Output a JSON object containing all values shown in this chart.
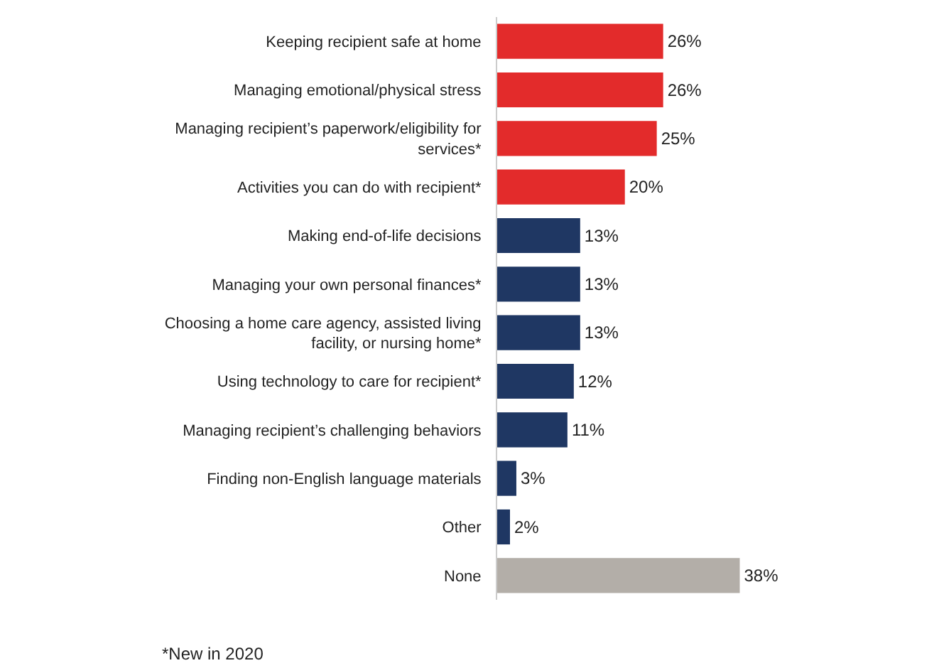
{
  "chart_data": {
    "type": "bar",
    "orientation": "horizontal",
    "data_labels": true,
    "categories": [
      "Keeping recipient safe at home",
      "Managing emotional/physical stress",
      "Managing recipient’s paperwork/eligibility for services*",
      "Activities you can do with recipient*",
      "Making end-of-life decisions",
      "Managing your own personal finances*",
      "Choosing a home care agency, assisted living facility, or nursing home*",
      "Using technology to care for recipient*",
      "Managing recipient’s challenging behaviors",
      "Finding non-English language materials",
      "Other",
      "None"
    ],
    "values": [
      26,
      26,
      25,
      20,
      13,
      13,
      13,
      12,
      11,
      3,
      2,
      38
    ],
    "value_labels": [
      "26%",
      "26%",
      "25%",
      "20%",
      "13%",
      "13%",
      "13%",
      "12%",
      "11%",
      "3%",
      "2%",
      "38%"
    ],
    "colors": [
      "#e32b2b",
      "#e32b2b",
      "#e32b2b",
      "#e32b2b",
      "#1f3763",
      "#1f3763",
      "#1f3763",
      "#1f3763",
      "#1f3763",
      "#1f3763",
      "#1f3763",
      "#b3aea8"
    ],
    "annotations": [
      "*New in 2020"
    ]
  }
}
